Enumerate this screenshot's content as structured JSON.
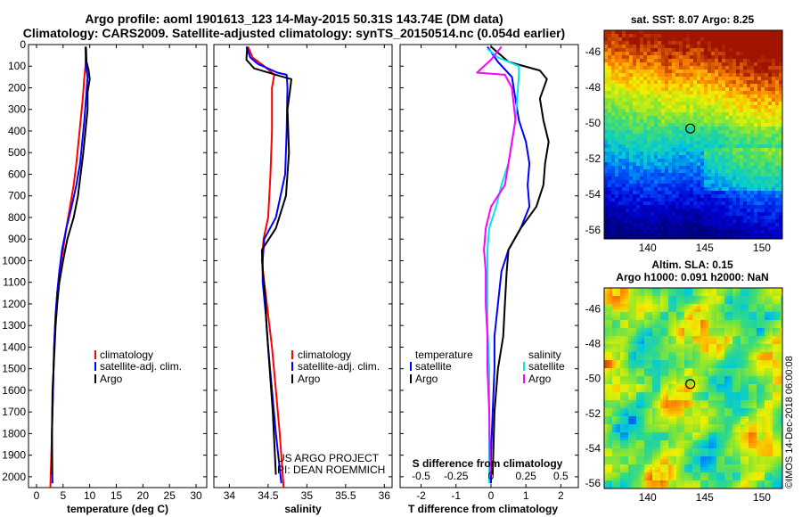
{
  "header": {
    "title_line1": "Argo profile: aoml 1901613_123 14-May-2015 50.31S 143.74E (DM data)",
    "title_line2": "Climatology: CARS2009. Satellite-adjusted climatology: synTS_20150514.nc (0.054d earlier)"
  },
  "colors": {
    "climatology": "#ff0000",
    "satellite": "#0000ff",
    "argo": "#000000",
    "sat_salinity": "#00e5ee",
    "salinity_diff": "#ff00ff"
  },
  "chart_data": [
    {
      "type": "line",
      "name": "temperature-profile",
      "xlabel": "temperature (deg C)",
      "xlim": [
        -1.5,
        32
      ],
      "xticks": [
        "0",
        "5",
        "10",
        "15",
        "20",
        "25",
        "30"
      ],
      "xtick_values": [
        0,
        5,
        10,
        15,
        20,
        25,
        30
      ],
      "ylim": [
        0,
        2050
      ],
      "yticks": [
        "0",
        "100",
        "200",
        "300",
        "400",
        "500",
        "600",
        "700",
        "800",
        "900",
        "1000",
        "1100",
        "1200",
        "1300",
        "1400",
        "1500",
        "1600",
        "1700",
        "1800",
        "1900",
        "2000"
      ],
      "ytick_values": [
        0,
        100,
        200,
        300,
        400,
        500,
        600,
        700,
        800,
        900,
        1000,
        1100,
        1200,
        1300,
        1400,
        1500,
        1600,
        1700,
        1800,
        1900,
        2000
      ],
      "legend": [
        "climatology",
        "satellite-adj. clim.",
        "Argo"
      ],
      "series": [
        {
          "name": "climatology",
          "color": "#ff0000",
          "points": [
            [
              9.3,
              20
            ],
            [
              9.2,
              100
            ],
            [
              9.0,
              150
            ],
            [
              8.7,
              250
            ],
            [
              8.3,
              350
            ],
            [
              7.9,
              450
            ],
            [
              7.5,
              550
            ],
            [
              7.0,
              650
            ],
            [
              6.3,
              750
            ],
            [
              5.6,
              850
            ],
            [
              5.0,
              950
            ],
            [
              4.3,
              1050
            ],
            [
              3.9,
              1150
            ],
            [
              3.6,
              1250
            ],
            [
              3.3,
              1400
            ],
            [
              3.1,
              1600
            ],
            [
              2.9,
              1800
            ],
            [
              2.6,
              2050
            ]
          ]
        },
        {
          "name": "satellite-adj. clim.",
          "color": "#0000ff",
          "points": [
            [
              9.2,
              10
            ],
            [
              9.3,
              100
            ],
            [
              9.6,
              150
            ],
            [
              9.3,
              250
            ],
            [
              9.0,
              350
            ],
            [
              8.6,
              450
            ],
            [
              8.2,
              550
            ],
            [
              7.5,
              650
            ],
            [
              6.6,
              750
            ],
            [
              5.6,
              850
            ],
            [
              4.8,
              950
            ],
            [
              4.3,
              1050
            ],
            [
              3.9,
              1150
            ],
            [
              3.6,
              1250
            ],
            [
              3.3,
              1400
            ],
            [
              3.1,
              1600
            ],
            [
              2.9,
              1800
            ],
            [
              3.0,
              2030
            ]
          ]
        },
        {
          "name": "Argo",
          "color": "#000000",
          "points": [
            [
              9.3,
              10
            ],
            [
              9.4,
              80
            ],
            [
              9.8,
              120
            ],
            [
              10.0,
              160
            ],
            [
              9.6,
              220
            ],
            [
              9.6,
              300
            ],
            [
              9.2,
              400
            ],
            [
              8.8,
              500
            ],
            [
              8.3,
              600
            ],
            [
              7.8,
              700
            ],
            [
              7.0,
              800
            ],
            [
              5.8,
              900
            ],
            [
              5.0,
              1000
            ],
            [
              4.3,
              1100
            ],
            [
              3.9,
              1200
            ],
            [
              3.6,
              1300
            ],
            [
              3.4,
              1400
            ],
            [
              3.2,
              1500
            ],
            [
              3.0,
              1600
            ],
            [
              2.9,
              1800
            ],
            [
              2.9,
              1990
            ]
          ]
        }
      ]
    },
    {
      "type": "line",
      "name": "salinity-profile",
      "xlabel": "salinity",
      "xlim": [
        33.8,
        36.1
      ],
      "xticks": [
        "34",
        "34.5",
        "35",
        "35.5",
        "36"
      ],
      "xtick_values": [
        34,
        34.5,
        35,
        35.5,
        36
      ],
      "legend": [
        "climatology",
        "satellite-adj. clim.",
        "Argo"
      ],
      "annotation_line1": "US ARGO PROJECT",
      "annotation_line2": "PI: DEAN ROEMMICH",
      "series": [
        {
          "name": "climatology",
          "color": "#ff0000",
          "points": [
            [
              34.24,
              10
            ],
            [
              34.3,
              60
            ],
            [
              34.45,
              100
            ],
            [
              34.58,
              140
            ],
            [
              34.55,
              200
            ],
            [
              34.55,
              400
            ],
            [
              34.53,
              600
            ],
            [
              34.5,
              800
            ],
            [
              34.44,
              900
            ],
            [
              34.42,
              1000
            ],
            [
              34.45,
              1100
            ],
            [
              34.5,
              1250
            ],
            [
              34.55,
              1400
            ],
            [
              34.6,
              1600
            ],
            [
              34.65,
              1800
            ],
            [
              34.7,
              2050
            ]
          ]
        },
        {
          "name": "satellite-adj. clim.",
          "color": "#0000ff",
          "points": [
            [
              34.22,
              10
            ],
            [
              34.27,
              60
            ],
            [
              34.37,
              90
            ],
            [
              34.62,
              130
            ],
            [
              34.74,
              140
            ],
            [
              34.75,
              200
            ],
            [
              34.74,
              400
            ],
            [
              34.72,
              600
            ],
            [
              34.6,
              800
            ],
            [
              34.45,
              900
            ],
            [
              34.43,
              1000
            ],
            [
              34.43,
              1100
            ],
            [
              34.47,
              1250
            ],
            [
              34.5,
              1400
            ],
            [
              34.55,
              1600
            ],
            [
              34.6,
              1800
            ],
            [
              34.67,
              2030
            ]
          ]
        },
        {
          "name": "Argo",
          "color": "#000000",
          "points": [
            [
              34.23,
              10
            ],
            [
              34.22,
              70
            ],
            [
              34.32,
              110
            ],
            [
              34.65,
              145
            ],
            [
              34.8,
              160
            ],
            [
              34.78,
              220
            ],
            [
              34.75,
              300
            ],
            [
              34.77,
              500
            ],
            [
              34.73,
              700
            ],
            [
              34.6,
              850
            ],
            [
              34.42,
              950
            ],
            [
              34.43,
              1050
            ],
            [
              34.46,
              1150
            ],
            [
              34.48,
              1300
            ],
            [
              34.52,
              1500
            ],
            [
              34.56,
              1700
            ],
            [
              34.6,
              1990
            ]
          ]
        }
      ]
    },
    {
      "type": "line",
      "name": "difference-profile",
      "xlabel": "T difference from climatology",
      "xlim": [
        -2.6,
        2.5
      ],
      "xticks": [
        "-2",
        "-1",
        "0",
        "1",
        "2"
      ],
      "xtick_values": [
        -2,
        -1,
        0,
        1,
        2
      ],
      "top_axis_label": "S difference from climatology",
      "top_ticks": [
        "-0.5",
        "-0.25",
        "0",
        "0.25",
        "0.5"
      ],
      "top_tick_values": [
        -0.5,
        -0.25,
        0,
        0.25,
        0.5
      ],
      "legend_left_title": "temperature",
      "legend_right_title": "salinity",
      "legend_left": [
        "satellite",
        "Argo"
      ],
      "legend_right": [
        "satellite",
        "Argo"
      ],
      "series": [
        {
          "name": "temperature satellite",
          "color": "#0000ff",
          "points": [
            [
              -0.1,
              10
            ],
            [
              0.2,
              80
            ],
            [
              0.6,
              150
            ],
            [
              0.7,
              250
            ],
            [
              0.8,
              350
            ],
            [
              1.0,
              450
            ],
            [
              1.1,
              550
            ],
            [
              1.05,
              650
            ],
            [
              1.1,
              750
            ],
            [
              0.85,
              850
            ],
            [
              0.5,
              950
            ],
            [
              0.3,
              1050
            ],
            [
              0.2,
              1200
            ],
            [
              0.1,
              1350
            ],
            [
              0.1,
              1500
            ],
            [
              0.05,
              1700
            ],
            [
              0.0,
              1900
            ],
            [
              0.0,
              2030
            ]
          ]
        },
        {
          "name": "temperature Argo",
          "color": "#000000",
          "points": [
            [
              0.0,
              10
            ],
            [
              0.5,
              80
            ],
            [
              1.4,
              120
            ],
            [
              1.6,
              160
            ],
            [
              1.4,
              250
            ],
            [
              1.5,
              350
            ],
            [
              1.65,
              450
            ],
            [
              1.55,
              550
            ],
            [
              1.5,
              650
            ],
            [
              1.3,
              750
            ],
            [
              0.85,
              850
            ],
            [
              0.5,
              950
            ],
            [
              0.45,
              1050
            ],
            [
              0.4,
              1200
            ],
            [
              0.35,
              1350
            ],
            [
              0.2,
              1500
            ],
            [
              0.1,
              1700
            ],
            [
              0.05,
              1990
            ]
          ]
        },
        {
          "name": "salinity satellite",
          "color": "#00e5ee",
          "points": [
            [
              -0.1,
              20
            ],
            [
              0.2,
              60
            ],
            [
              0.8,
              100
            ],
            [
              0.8,
              140
            ],
            [
              0.75,
              250
            ],
            [
              0.7,
              350
            ],
            [
              0.6,
              450
            ],
            [
              0.5,
              550
            ],
            [
              0.3,
              650
            ],
            [
              0.15,
              750
            ],
            [
              -0.05,
              850
            ],
            [
              -0.1,
              950
            ],
            [
              -0.1,
              1100
            ],
            [
              -0.1,
              1300
            ],
            [
              -0.05,
              1500
            ],
            [
              -0.05,
              1700
            ],
            [
              -0.05,
              1900
            ],
            [
              -0.05,
              2030
            ]
          ]
        },
        {
          "name": "salinity Argo",
          "color": "#ff00ff",
          "points": [
            [
              0.3,
              10
            ],
            [
              0.0,
              70
            ],
            [
              -0.4,
              130
            ],
            [
              0.4,
              140
            ],
            [
              0.6,
              200
            ],
            [
              0.7,
              350
            ],
            [
              0.6,
              450
            ],
            [
              0.5,
              550
            ],
            [
              0.4,
              650
            ],
            [
              0.0,
              750
            ],
            [
              -0.15,
              850
            ],
            [
              -0.2,
              950
            ],
            [
              -0.15,
              1050
            ],
            [
              -0.15,
              1200
            ],
            [
              -0.1,
              1350
            ],
            [
              -0.1,
              1500
            ],
            [
              -0.05,
              1700
            ],
            [
              -0.02,
              1990
            ]
          ]
        }
      ]
    },
    {
      "type": "heatmap",
      "name": "sst-map",
      "title": "sat. SST: 8.07 Argo: 8.25",
      "xticks": [
        "140",
        "145",
        "150"
      ],
      "xtick_values": [
        140,
        145,
        150
      ],
      "yticks": [
        "-46",
        "-48",
        "-50",
        "-52",
        "-54",
        "-56"
      ],
      "ytick_values": [
        -46,
        -48,
        -50,
        -52,
        -54,
        -56
      ],
      "xlim": [
        136.2,
        151.8
      ],
      "ylim": [
        -56.5,
        -44.8
      ],
      "marker": [
        143.74,
        -50.31
      ]
    },
    {
      "type": "heatmap",
      "name": "sla-map",
      "title_line1": "Altim. SLA: 0.15",
      "title_line2": "Argo h1000: 0.091 h2000: NaN",
      "xticks": [
        "140",
        "145",
        "150"
      ],
      "xtick_values": [
        140,
        145,
        150
      ],
      "yticks": [
        "-46",
        "-48",
        "-50",
        "-52",
        "-54",
        "-56"
      ],
      "ytick_values": [
        -46,
        -48,
        -50,
        -52,
        -54,
        -56
      ],
      "xlim": [
        136.2,
        151.8
      ],
      "ylim": [
        -56.3,
        -44.8
      ],
      "marker": [
        143.74,
        -50.31
      ]
    }
  ],
  "footer": {
    "stamp": "©IMOS 14-Dec-2018 06:00:08"
  }
}
